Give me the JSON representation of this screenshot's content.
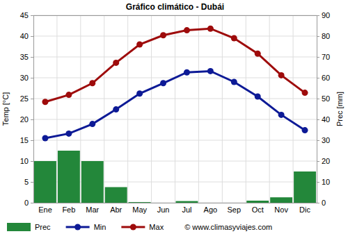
{
  "chart_data": {
    "type": "line",
    "title": "Gráfico climático - Dubái",
    "ylabel": "Temp [°C]",
    "y2label": "Prec [mm]",
    "categories": [
      "Ene",
      "Feb",
      "Mar",
      "Abr",
      "May",
      "Jun",
      "Jul",
      "Ago",
      "Sep",
      "Oct",
      "Nov",
      "Dic"
    ],
    "series": [
      {
        "name": "Prec",
        "type": "bar",
        "axis": "y2",
        "color": "#23873a",
        "values": [
          20,
          25,
          20,
          7.5,
          0.3,
          0,
          0.8,
          0,
          0,
          1,
          2.6,
          15
        ]
      },
      {
        "name": "Min",
        "type": "line",
        "color": "#0d1a96",
        "marker": "circle",
        "line_style": "solid",
        "values": [
          15.5,
          16.6,
          18.9,
          22.4,
          26.2,
          28.7,
          31.3,
          31.6,
          29.0,
          25.5,
          21.1,
          17.4
        ]
      },
      {
        "name": "Max",
        "type": "line",
        "color": "#9e0b0b",
        "marker": "circle",
        "line_style": "solid",
        "values": [
          24.2,
          25.9,
          28.7,
          33.6,
          38.0,
          40.2,
          41.4,
          41.8,
          39.5,
          35.8,
          30.6,
          26.4
        ]
      }
    ],
    "ylim": [
      0,
      45
    ],
    "yticks": [
      0,
      5,
      10,
      15,
      20,
      25,
      30,
      35,
      40,
      45
    ],
    "y2lim": [
      0,
      90
    ],
    "y2ticks": [
      0,
      10,
      20,
      30,
      40,
      50,
      60,
      70,
      80,
      90
    ],
    "grid": true,
    "legend": "bottom",
    "annotations": [
      "© www.climasyviajes.com"
    ]
  }
}
